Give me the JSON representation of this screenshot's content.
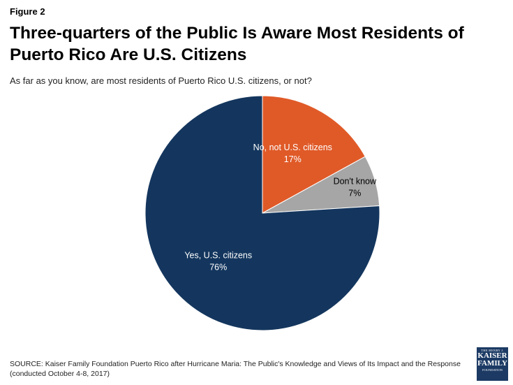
{
  "figure_label": "Figure 2",
  "title": "Three-quarters of the Public Is Aware Most Residents of Puerto Rico Are U.S. Citizens",
  "subtitle": "As far as you know, are most residents of Puerto Rico U.S. citizens, or not?",
  "source": "SOURCE: Kaiser Family Foundation Puerto Rico after Hurricane Maria: The Public's Knowledge and Views of Its Impact and the Response (conducted October 4-8, 2017)",
  "logo": {
    "line1": "THE HENRY J.",
    "line2": "KAISER",
    "line3": "FAMILY",
    "line4": "FOUNDATION",
    "color": "#1c3a64"
  },
  "chart_data": {
    "type": "pie",
    "start_angle_deg": 0,
    "direction": "clockwise",
    "slices": [
      {
        "label": "No, not U.S. citizens",
        "value": 17,
        "value_label": "17%",
        "color": "#e05a28",
        "text_color": "#ffffff"
      },
      {
        "label": "Don't know",
        "value": 7,
        "value_label": "7%",
        "color": "#a6a6a6",
        "text_color": "#000000"
      },
      {
        "label": "Yes, U.S. citizens",
        "value": 76,
        "value_label": "76%",
        "color": "#14365e",
        "text_color": "#ffffff"
      }
    ]
  }
}
